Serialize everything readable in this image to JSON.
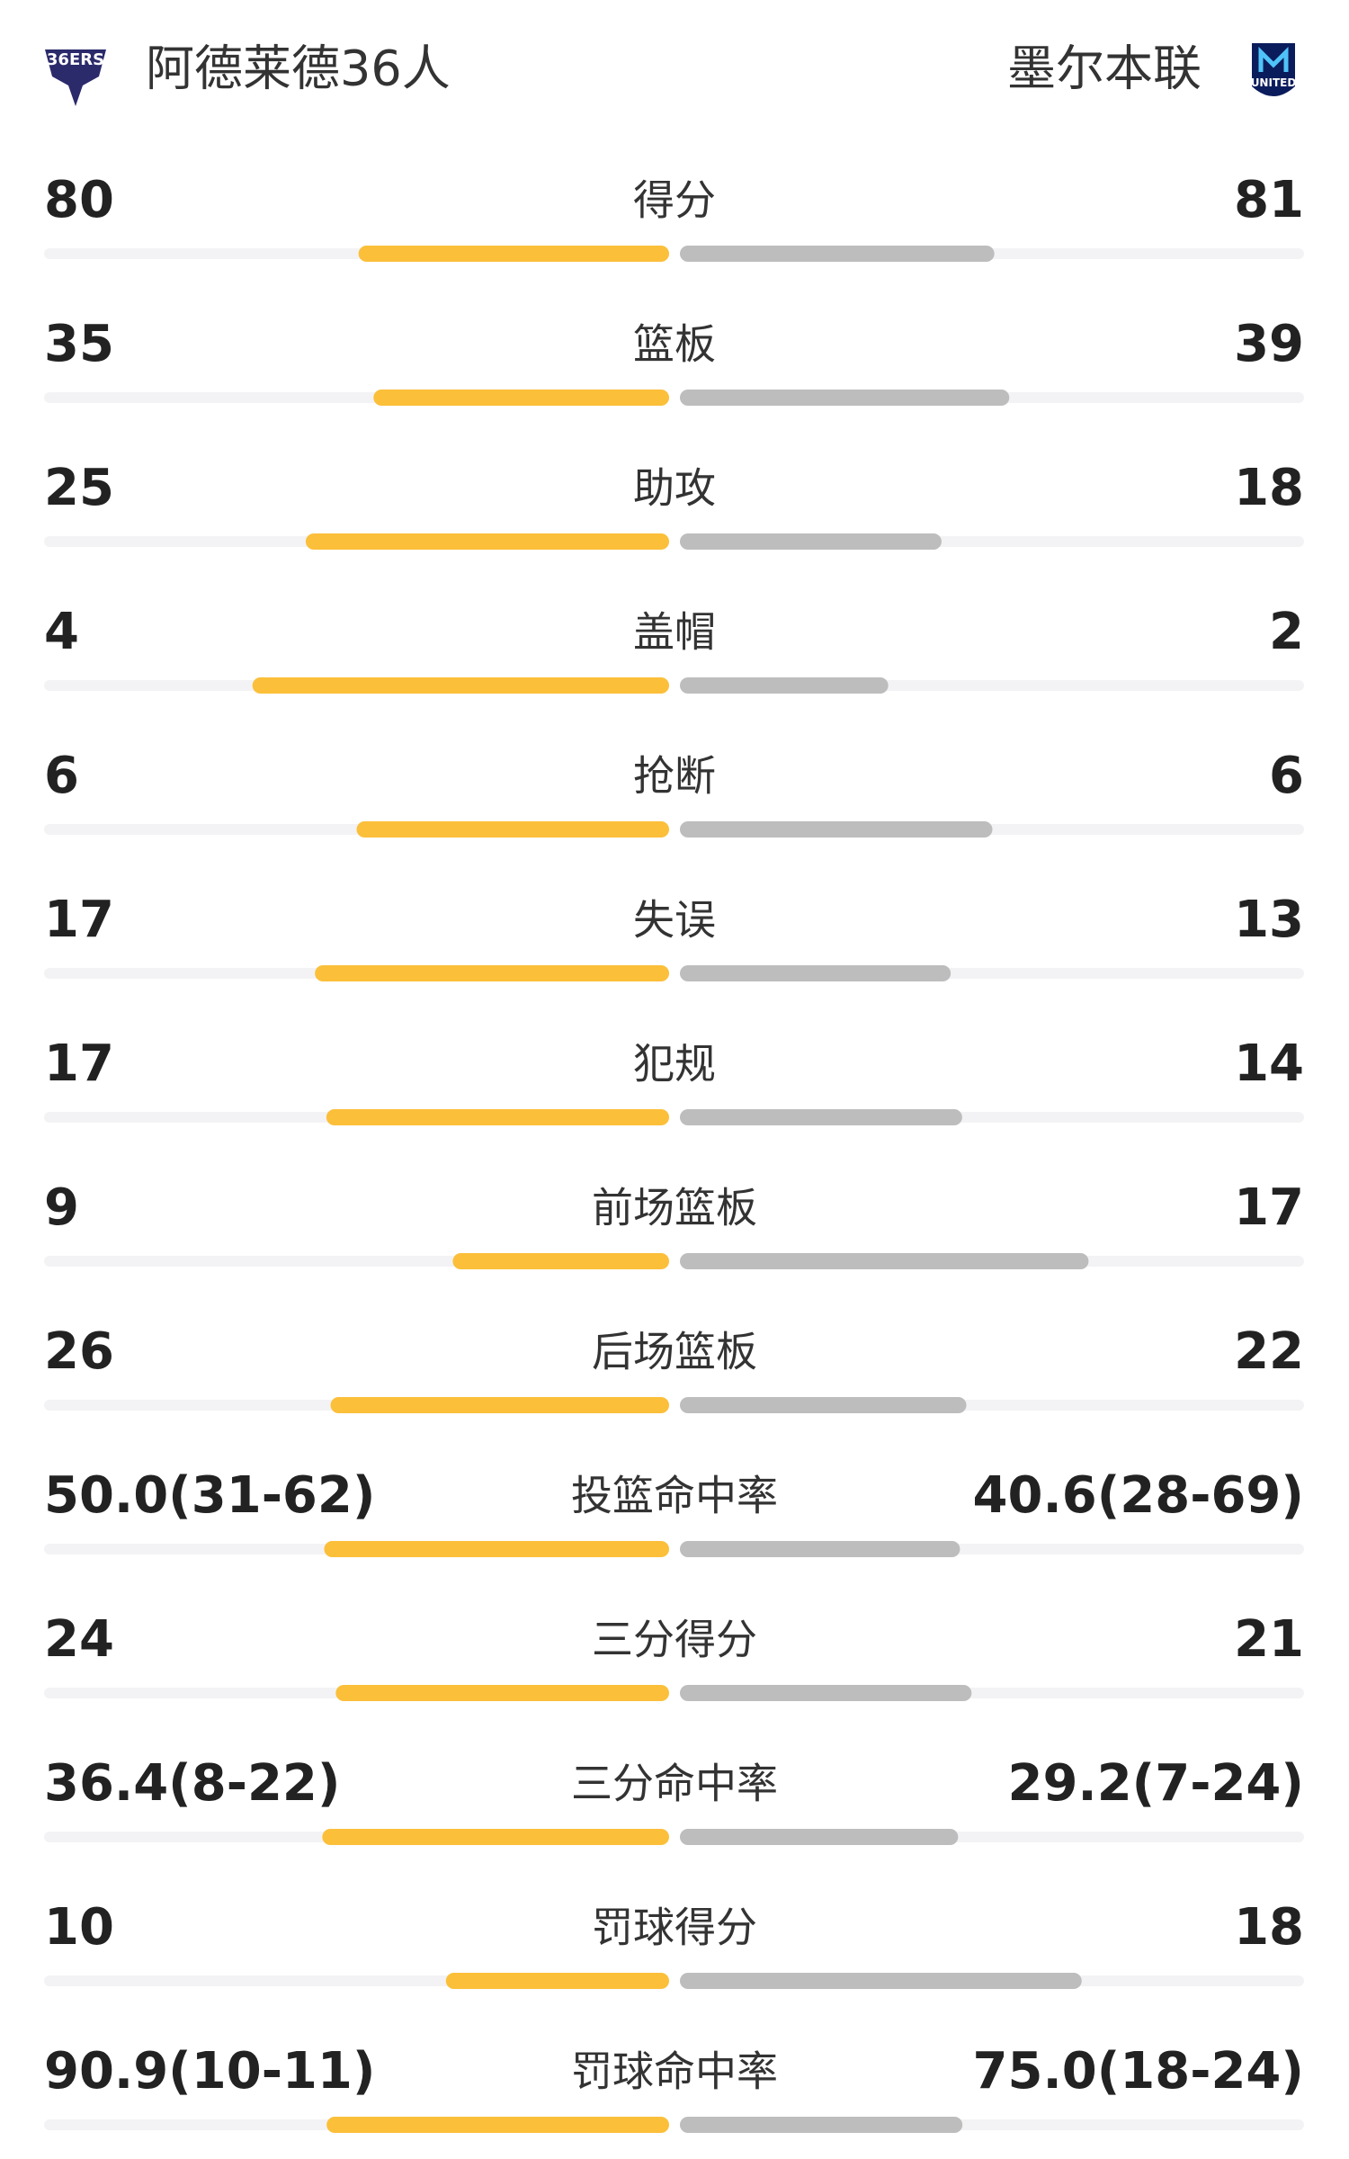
{
  "header": {
    "home_team": "阿德莱德36人",
    "away_team": "墨尔本联"
  },
  "rows": [
    {
      "label": "得分",
      "home": "80",
      "away": "81"
    },
    {
      "label": "篮板",
      "home": "35",
      "away": "39"
    },
    {
      "label": "助攻",
      "home": "25",
      "away": "18"
    },
    {
      "label": "盖帽",
      "home": "4",
      "away": "2"
    },
    {
      "label": "抢断",
      "home": "6",
      "away": "6"
    },
    {
      "label": "失误",
      "home": "17",
      "away": "13"
    },
    {
      "label": "犯规",
      "home": "17",
      "away": "14"
    },
    {
      "label": "前场篮板",
      "home": "9",
      "away": "17"
    },
    {
      "label": "后场篮板",
      "home": "26",
      "away": "22"
    },
    {
      "label": "投篮命中率",
      "home": "50.0(31-62)",
      "away": "40.6(28-69)"
    },
    {
      "label": "三分得分",
      "home": "24",
      "away": "21"
    },
    {
      "label": "三分命中率",
      "home": "36.4(8-22)",
      "away": "29.2(7-24)"
    },
    {
      "label": "罚球得分",
      "home": "10",
      "away": "18"
    },
    {
      "label": "罚球命中率",
      "home": "90.9(10-11)",
      "away": "75.0(18-24)"
    }
  ]
}
